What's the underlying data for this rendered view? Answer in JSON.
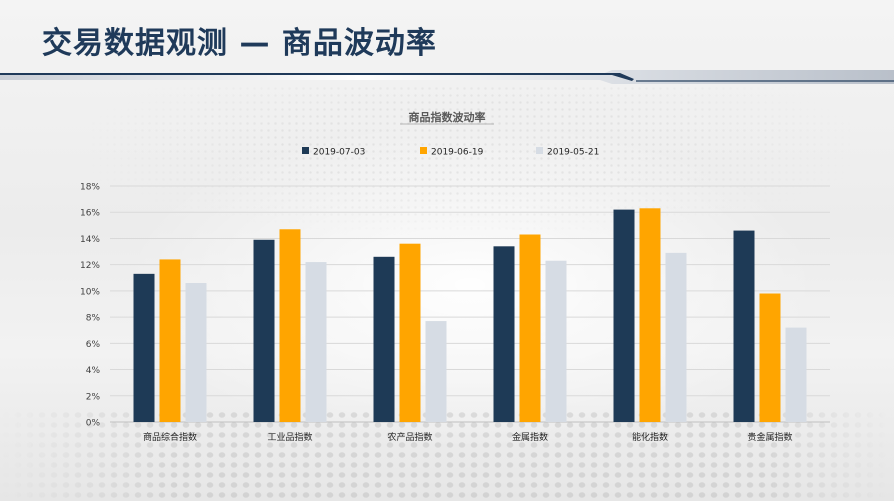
{
  "page": {
    "title": "交易数据观测 — 商品波动率"
  },
  "colors": {
    "title": "#1f3a5a",
    "band_dark": "#1f3a5a",
    "series": [
      "#1e3a56",
      "#ffa500",
      "#d6dce4"
    ]
  },
  "chart_data": {
    "type": "bar",
    "title": "商品指数波动率",
    "categories": [
      "商品综合指数",
      "工业品指数",
      "农产品指数",
      "金属指数",
      "能化指数",
      "贵金属指数"
    ],
    "series": [
      {
        "name": "2019-07-03",
        "values": [
          11.3,
          13.9,
          12.6,
          13.4,
          16.2,
          14.6
        ]
      },
      {
        "name": "2019-06-19",
        "values": [
          12.4,
          14.7,
          13.6,
          14.3,
          16.3,
          9.8
        ]
      },
      {
        "name": "2019-05-21",
        "values": [
          10.6,
          12.2,
          7.7,
          12.3,
          12.9,
          7.2
        ]
      }
    ],
    "y_ticks": [
      "0%",
      "2%",
      "4%",
      "6%",
      "8%",
      "10%",
      "12%",
      "14%",
      "16%",
      "18%"
    ],
    "ylim": [
      0,
      18
    ],
    "grid": true,
    "legend_position": "top"
  }
}
